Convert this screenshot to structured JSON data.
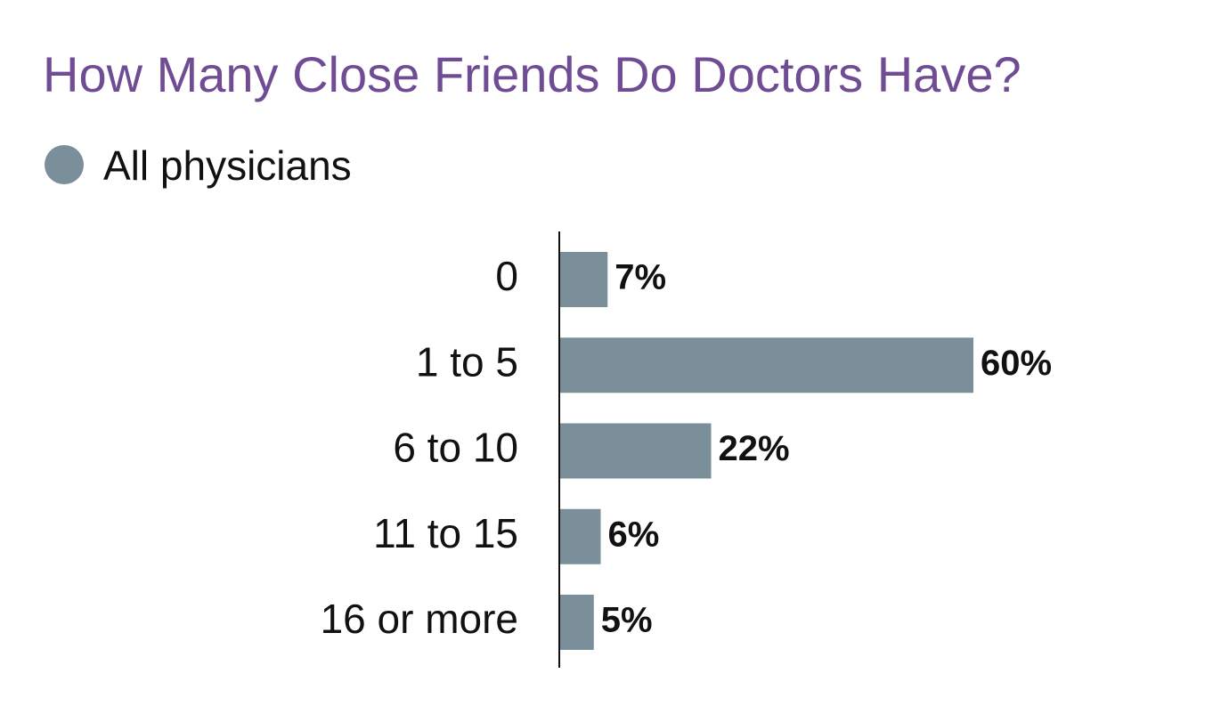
{
  "chart_data": {
    "type": "bar",
    "orientation": "horizontal",
    "title": "How Many Close Friends Do Doctors Have?",
    "categories": [
      "0",
      "1 to 5",
      "6 to 10",
      "11 to 15",
      "16 or more"
    ],
    "series": [
      {
        "name": "All physicians",
        "color": "#7a8f99",
        "values": [
          7,
          60,
          22,
          6,
          5
        ],
        "value_labels": [
          "7%",
          "60%",
          "22%",
          "6%",
          "5%"
        ]
      }
    ]
  }
}
